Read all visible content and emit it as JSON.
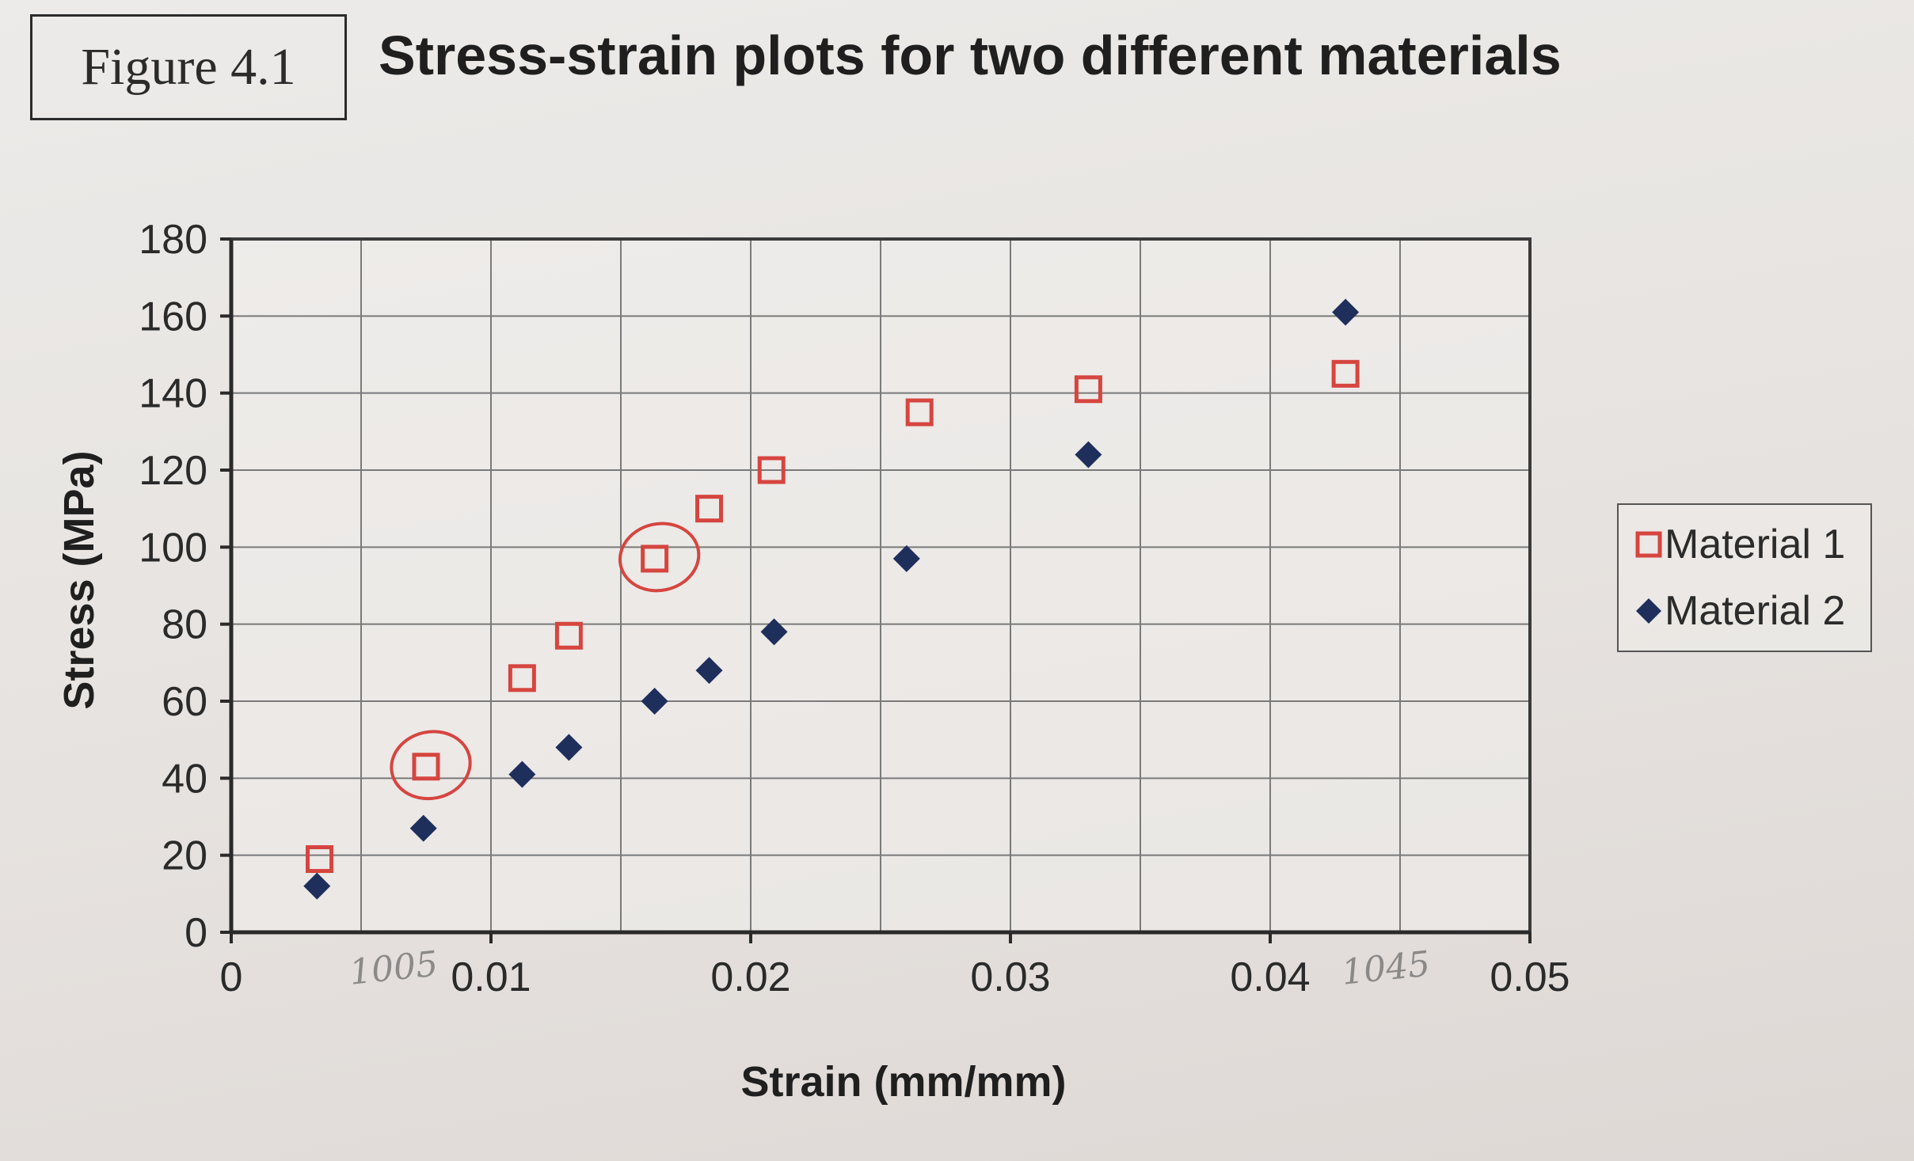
{
  "figure_label": "Figure 4.1",
  "title": "Stress-strain plots for two different materials",
  "colors": {
    "material1": "#d6453f",
    "material2": "#1f2f5c",
    "grid": "#7a7a7a",
    "annotation": "#d6453f",
    "pencil": "#6e6e6e"
  },
  "chart_data": {
    "type": "scatter",
    "title": "Stress-strain plots for two different materials",
    "xlabel": "Strain (mm/mm)",
    "ylabel": "Stress (MPa)",
    "xlim": [
      0,
      0.05
    ],
    "ylim": [
      0,
      180
    ],
    "x_ticks": [
      "0",
      "0.01",
      "0.02",
      "0.03",
      "0.04",
      "0.05"
    ],
    "y_ticks": [
      "0",
      "20",
      "40",
      "60",
      "80",
      "100",
      "120",
      "140",
      "160",
      "180"
    ],
    "grid": true,
    "legend_position": "right",
    "series": [
      {
        "name": "Material 1",
        "marker": "hollow-square",
        "color": "#d6453f",
        "points": [
          {
            "x": 0.0034,
            "y": 19
          },
          {
            "x": 0.0075,
            "y": 43
          },
          {
            "x": 0.0112,
            "y": 66
          },
          {
            "x": 0.013,
            "y": 77
          },
          {
            "x": 0.0163,
            "y": 97
          },
          {
            "x": 0.0184,
            "y": 110
          },
          {
            "x": 0.0208,
            "y": 120
          },
          {
            "x": 0.0265,
            "y": 135
          },
          {
            "x": 0.033,
            "y": 141
          },
          {
            "x": 0.0429,
            "y": 145
          }
        ]
      },
      {
        "name": "Material 2",
        "marker": "filled-diamond",
        "color": "#1f2f5c",
        "points": [
          {
            "x": 0.0033,
            "y": 12
          },
          {
            "x": 0.0074,
            "y": 27
          },
          {
            "x": 0.0112,
            "y": 41
          },
          {
            "x": 0.013,
            "y": 48
          },
          {
            "x": 0.0163,
            "y": 60
          },
          {
            "x": 0.0184,
            "y": 68
          },
          {
            "x": 0.0209,
            "y": 78
          },
          {
            "x": 0.026,
            "y": 97
          },
          {
            "x": 0.033,
            "y": 124
          },
          {
            "x": 0.0429,
            "y": 161
          }
        ]
      }
    ],
    "annotations": [
      {
        "type": "circle",
        "series": "Material 1",
        "x": 0.0075,
        "y": 43
      },
      {
        "type": "circle",
        "series": "Material 1",
        "x": 0.0163,
        "y": 97
      },
      {
        "type": "handwritten",
        "text": "1005",
        "x": 0.0063,
        "y": -10
      },
      {
        "type": "handwritten",
        "text": "1045",
        "x": 0.0445,
        "y": -10
      }
    ]
  }
}
